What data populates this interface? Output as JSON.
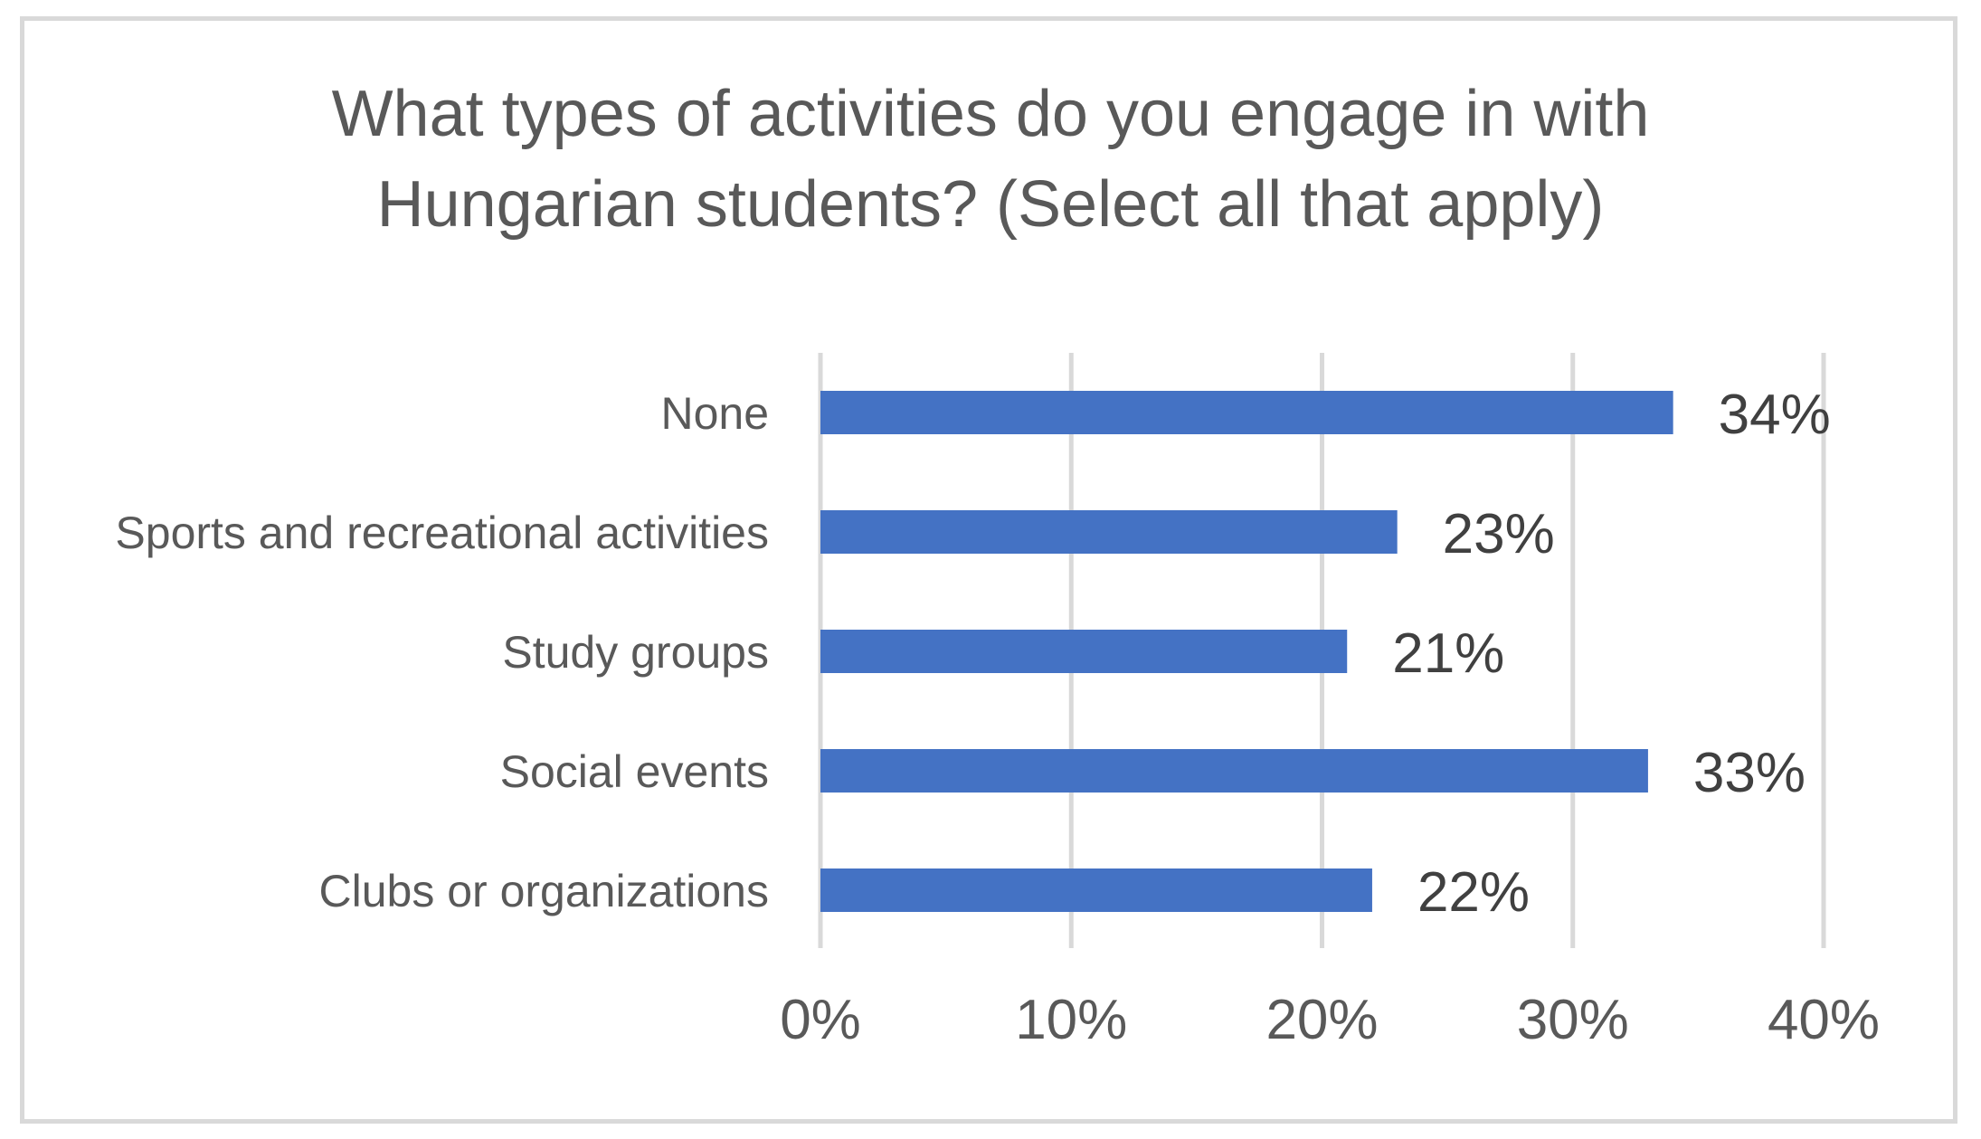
{
  "chart_data": {
    "type": "bar",
    "orientation": "horizontal",
    "title": "What types of activities do you engage in with Hungarian students? (Select all that apply)",
    "title_lines": [
      "What types of activities do you engage in with",
      "Hungarian students? (Select all that apply)"
    ],
    "categories": [
      "None",
      "Sports and recreational activities",
      "Study groups",
      "Social events",
      "Clubs or organizations"
    ],
    "values": [
      34,
      23,
      21,
      33,
      22
    ],
    "data_labels": [
      "34%",
      "23%",
      "21%",
      "33%",
      "22%"
    ],
    "xlim": [
      0,
      40
    ],
    "x_ticks": [
      0,
      10,
      20,
      30,
      40
    ],
    "x_tick_labels": [
      "0%",
      "10%",
      "20%",
      "30%",
      "40%"
    ],
    "xlabel": "",
    "ylabel": "",
    "grid": "vertical",
    "legend": "none",
    "colors": {
      "bar": "#4472c4",
      "grid": "#d9d9d9",
      "text": "#595959",
      "data_label": "#404040",
      "frame": "#d9d9d9"
    }
  }
}
